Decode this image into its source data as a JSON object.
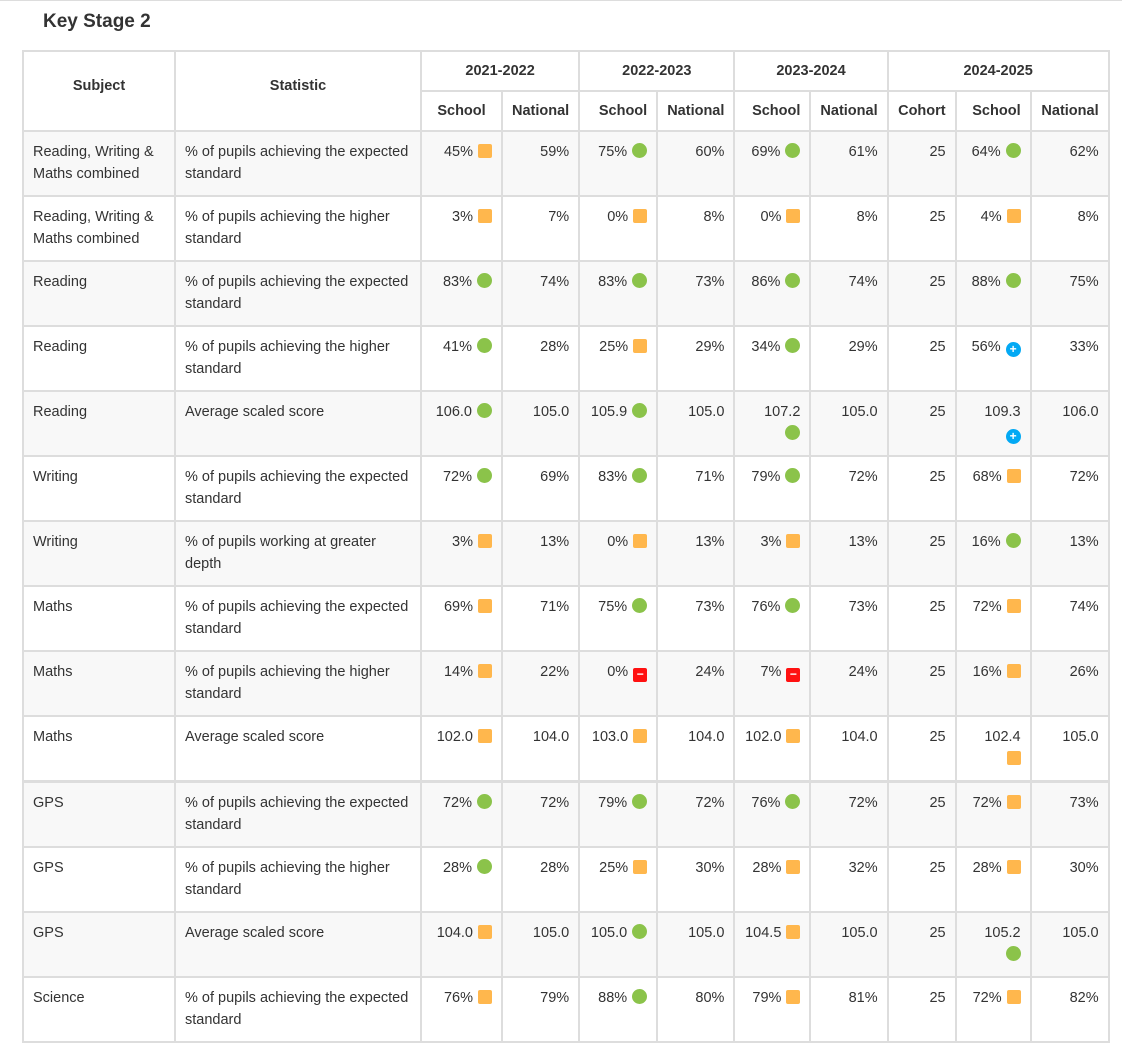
{
  "title": "Key Stage 2",
  "headers": {
    "subject": "Subject",
    "statistic": "Statistic",
    "years": [
      "2021-2022",
      "2022-2023",
      "2023-2024",
      "2024-2025"
    ],
    "school": "School",
    "national": "National",
    "cohort": "Cohort"
  },
  "marker_colors": {
    "amber": "#ffb74d",
    "green": "#8bc34a",
    "blue": "#03a9f4",
    "red": "#ff1111"
  },
  "rows": [
    {
      "subject": "Reading, Writing & Maths combined",
      "statistic": "% of pupils achieving the expected standard",
      "cells": [
        [
          "45%",
          "amber"
        ],
        [
          "59%"
        ],
        [
          "75%",
          "green"
        ],
        [
          "60%"
        ],
        [
          "69%",
          "green"
        ],
        [
          "61%"
        ],
        [
          "25"
        ],
        [
          "64%",
          "green"
        ],
        [
          "62%"
        ]
      ]
    },
    {
      "subject": "Reading, Writing & Maths combined",
      "statistic": "% of pupils achieving the higher standard",
      "cells": [
        [
          "3%",
          "amber"
        ],
        [
          "7%"
        ],
        [
          "0%",
          "amber"
        ],
        [
          "8%"
        ],
        [
          "0%",
          "amber"
        ],
        [
          "8%"
        ],
        [
          "25"
        ],
        [
          "4%",
          "amber"
        ],
        [
          "8%"
        ]
      ]
    },
    {
      "subject": "Reading",
      "statistic": "% of pupils achieving the expected standard",
      "cells": [
        [
          "83%",
          "green"
        ],
        [
          "74%"
        ],
        [
          "83%",
          "green"
        ],
        [
          "73%"
        ],
        [
          "86%",
          "green"
        ],
        [
          "74%"
        ],
        [
          "25"
        ],
        [
          "88%",
          "green"
        ],
        [
          "75%"
        ]
      ]
    },
    {
      "subject": "Reading",
      "statistic": "% of pupils achieving the higher standard",
      "cells": [
        [
          "41%",
          "green"
        ],
        [
          "28%"
        ],
        [
          "25%",
          "amber"
        ],
        [
          "29%"
        ],
        [
          "34%",
          "green"
        ],
        [
          "29%"
        ],
        [
          "25"
        ],
        [
          "56%",
          "blue"
        ],
        [
          "33%"
        ]
      ]
    },
    {
      "subject": "Reading",
      "statistic": "Average scaled score",
      "cells": [
        [
          "106.0",
          "green"
        ],
        [
          "105.0"
        ],
        [
          "105.9",
          "green"
        ],
        [
          "105.0"
        ],
        [
          "107.2",
          "green"
        ],
        [
          "105.0"
        ],
        [
          "25"
        ],
        [
          "109.3",
          "blue"
        ],
        [
          "106.0"
        ]
      ]
    },
    {
      "subject": "Writing",
      "statistic": "% of pupils achieving the expected standard",
      "cells": [
        [
          "72%",
          "green"
        ],
        [
          "69%"
        ],
        [
          "83%",
          "green"
        ],
        [
          "71%"
        ],
        [
          "79%",
          "green"
        ],
        [
          "72%"
        ],
        [
          "25"
        ],
        [
          "68%",
          "amber"
        ],
        [
          "72%"
        ]
      ]
    },
    {
      "subject": "Writing",
      "statistic": "% of pupils working at greater depth",
      "cells": [
        [
          "3%",
          "amber"
        ],
        [
          "13%"
        ],
        [
          "0%",
          "amber"
        ],
        [
          "13%"
        ],
        [
          "3%",
          "amber"
        ],
        [
          "13%"
        ],
        [
          "25"
        ],
        [
          "16%",
          "green"
        ],
        [
          "13%"
        ]
      ]
    },
    {
      "subject": "Maths",
      "statistic": "% of pupils achieving the expected standard",
      "cells": [
        [
          "69%",
          "amber"
        ],
        [
          "71%"
        ],
        [
          "75%",
          "green"
        ],
        [
          "73%"
        ],
        [
          "76%",
          "green"
        ],
        [
          "73%"
        ],
        [
          "25"
        ],
        [
          "72%",
          "amber"
        ],
        [
          "74%"
        ]
      ]
    },
    {
      "subject": "Maths",
      "statistic": "% of pupils achieving the higher standard",
      "cells": [
        [
          "14%",
          "amber"
        ],
        [
          "22%"
        ],
        [
          "0%",
          "red"
        ],
        [
          "24%"
        ],
        [
          "7%",
          "red"
        ],
        [
          "24%"
        ],
        [
          "25"
        ],
        [
          "16%",
          "amber"
        ],
        [
          "26%"
        ]
      ]
    },
    {
      "subject": "Maths",
      "statistic": "Average scaled score",
      "cells": [
        [
          "102.0",
          "amber"
        ],
        [
          "104.0"
        ],
        [
          "103.0",
          "amber"
        ],
        [
          "104.0"
        ],
        [
          "102.0",
          "amber"
        ],
        [
          "104.0"
        ],
        [
          "25"
        ],
        [
          "102.4",
          "amber"
        ],
        [
          "105.0"
        ]
      ]
    },
    {
      "subject": "GPS",
      "statistic": "% of pupils achieving the expected standard",
      "cells": [
        [
          "72%",
          "green"
        ],
        [
          "72%"
        ],
        [
          "79%",
          "green"
        ],
        [
          "72%"
        ],
        [
          "76%",
          "green"
        ],
        [
          "72%"
        ],
        [
          "25"
        ],
        [
          "72%",
          "amber"
        ],
        [
          "73%"
        ]
      ]
    },
    {
      "subject": "GPS",
      "statistic": "% of pupils achieving the higher standard",
      "cells": [
        [
          "28%",
          "green"
        ],
        [
          "28%"
        ],
        [
          "25%",
          "amber"
        ],
        [
          "30%"
        ],
        [
          "28%",
          "amber"
        ],
        [
          "32%"
        ],
        [
          "25"
        ],
        [
          "28%",
          "amber"
        ],
        [
          "30%"
        ]
      ]
    },
    {
      "subject": "GPS",
      "statistic": "Average scaled score",
      "cells": [
        [
          "104.0",
          "amber"
        ],
        [
          "105.0"
        ],
        [
          "105.0",
          "green"
        ],
        [
          "105.0"
        ],
        [
          "104.5",
          "amber"
        ],
        [
          "105.0"
        ],
        [
          "25"
        ],
        [
          "105.2",
          "green"
        ],
        [
          "105.0"
        ]
      ]
    },
    {
      "subject": "Science",
      "statistic": "% of pupils achieving the expected standard",
      "cells": [
        [
          "76%",
          "amber"
        ],
        [
          "79%"
        ],
        [
          "88%",
          "green"
        ],
        [
          "80%"
        ],
        [
          "79%",
          "amber"
        ],
        [
          "81%"
        ],
        [
          "25"
        ],
        [
          "72%",
          "amber"
        ],
        [
          "82%"
        ]
      ]
    }
  ]
}
